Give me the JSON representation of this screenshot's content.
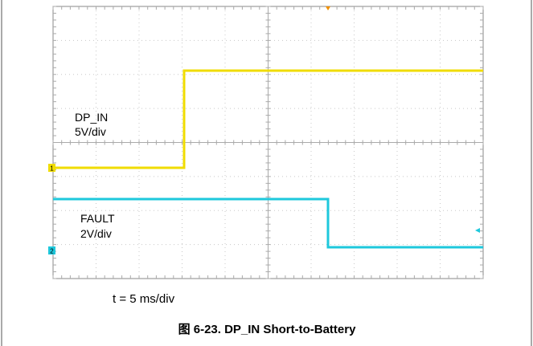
{
  "scope": {
    "channels": [
      "1",
      "2"
    ],
    "labels": [
      {
        "name": "DP_IN",
        "scale": "5V/div"
      },
      {
        "name": "FAULT",
        "scale": "2V/div"
      }
    ],
    "time_scale": "t = 5 ms/div"
  },
  "caption": "图 6-23. DP_IN Short-to-Battery"
}
